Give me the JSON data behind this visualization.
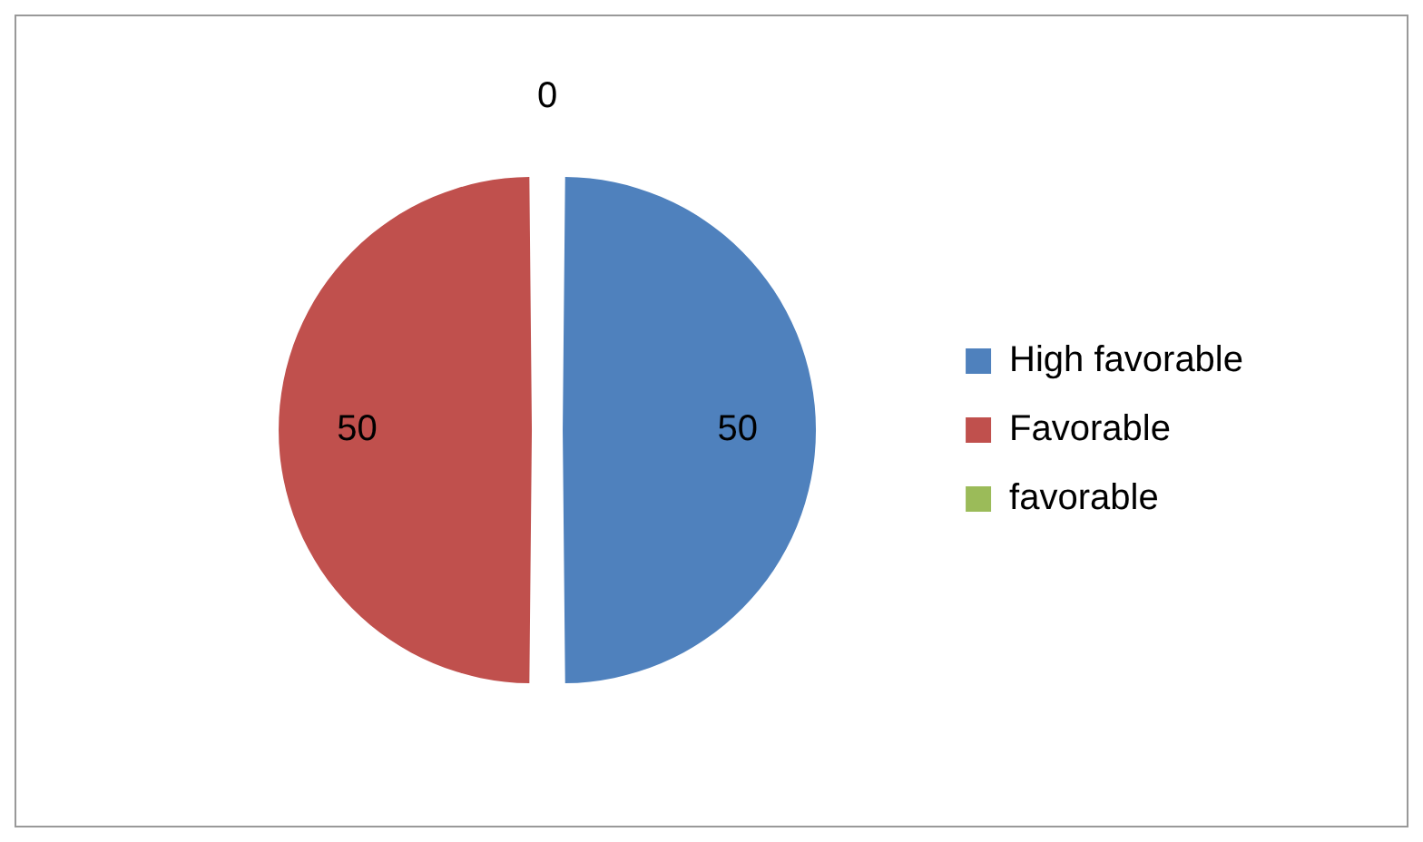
{
  "chart_data": {
    "type": "pie",
    "categories": [
      "High favorable",
      "Favorable",
      "favorable"
    ],
    "values": [
      50,
      50,
      0
    ],
    "value_labels": [
      "50",
      "50",
      "0"
    ],
    "colors": [
      "#4f81bd",
      "#c0504d",
      "#9bbb59"
    ],
    "legend": "right"
  }
}
